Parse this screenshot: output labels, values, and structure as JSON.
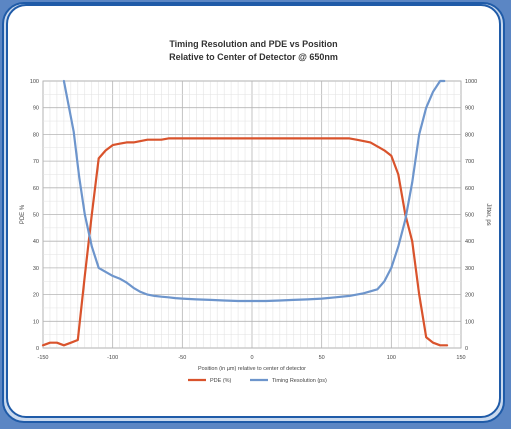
{
  "chart_data": {
    "type": "line",
    "title": "Timing Resolution and PDE vs Position",
    "subtitle": "Relative to Center of Detector @ 650nm",
    "xlabel": "Position (in µm) relative to center of detector",
    "ylabel_left": "PDE %",
    "ylabel_right": "Jitter, ps",
    "xlim": [
      -150,
      150
    ],
    "ylim_left": [
      0,
      100
    ],
    "ylim_right": [
      0,
      1000
    ],
    "x_ticks": [
      "-150",
      "-100",
      "-50",
      "0",
      "50",
      "100",
      "150"
    ],
    "y_left_ticks": [
      "0",
      "10",
      "20",
      "30",
      "40",
      "50",
      "60",
      "70",
      "80",
      "90",
      "100"
    ],
    "y_right_ticks": [
      "0",
      "100",
      "200",
      "300",
      "400",
      "500",
      "600",
      "700",
      "800",
      "900",
      "1000"
    ],
    "grid": true,
    "legend_position": "bottom",
    "series": [
      {
        "name": "PDE (%)",
        "axis": "left",
        "color": "#d9532c",
        "x": [
          -150,
          -145,
          -140,
          -135,
          -130,
          -125,
          -120,
          -115,
          -110,
          -105,
          -100,
          -95,
          -90,
          -85,
          -80,
          -75,
          -70,
          -65,
          -60,
          -55,
          -50,
          -45,
          -40,
          -35,
          -30,
          -25,
          -20,
          -15,
          -10,
          -5,
          0,
          5,
          10,
          15,
          20,
          25,
          30,
          35,
          40,
          45,
          50,
          55,
          60,
          65,
          70,
          75,
          80,
          85,
          90,
          95,
          100,
          105,
          110,
          115,
          120,
          125,
          130,
          135,
          140
        ],
        "y": [
          1,
          2,
          2,
          1,
          2,
          3,
          27,
          50,
          71,
          74,
          76,
          76.5,
          77,
          77,
          77.5,
          78,
          78,
          78,
          78.5,
          78.5,
          78.5,
          78.5,
          78.5,
          78.5,
          78.5,
          78.5,
          78.5,
          78.5,
          78.5,
          78.5,
          78.5,
          78.5,
          78.5,
          78.5,
          78.5,
          78.5,
          78.5,
          78.5,
          78.5,
          78.5,
          78.5,
          78.5,
          78.5,
          78.5,
          78.5,
          78,
          77.5,
          77,
          75.5,
          74,
          72,
          65,
          50,
          40,
          20,
          4,
          2,
          1,
          1
        ]
      },
      {
        "name": "Timing Resolution (ps)",
        "axis": "right",
        "color": "#6d95cc",
        "x": [
          -135,
          -128,
          -124,
          -120,
          -115,
          -110,
          -105,
          -100,
          -95,
          -90,
          -85,
          -80,
          -75,
          -70,
          -65,
          -60,
          -55,
          -50,
          -40,
          -30,
          -20,
          -10,
          0,
          10,
          20,
          30,
          40,
          50,
          60,
          70,
          80,
          90,
          95,
          100,
          105,
          110,
          115,
          120,
          125,
          130,
          135,
          138
        ],
        "y": [
          1000,
          810,
          640,
          500,
          380,
          300,
          285,
          270,
          260,
          245,
          225,
          210,
          200,
          195,
          192,
          190,
          187,
          185,
          182,
          180,
          178,
          176,
          176,
          176,
          178,
          180,
          182,
          185,
          190,
          195,
          205,
          220,
          250,
          300,
          380,
          480,
          620,
          800,
          900,
          960,
          1000,
          1000
        ]
      }
    ]
  }
}
